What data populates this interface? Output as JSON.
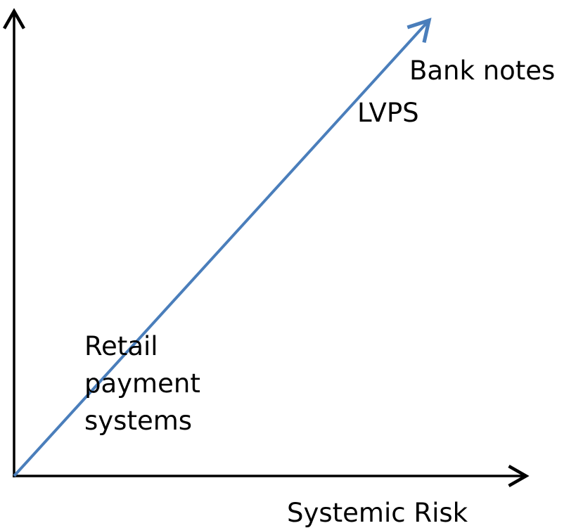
{
  "x_axis_label": "Systemic Risk",
  "labels": {
    "bank_notes": "Bank notes",
    "lvps": "LVPS",
    "retail": [
      "Retail",
      "payment",
      "systems"
    ]
  }
}
